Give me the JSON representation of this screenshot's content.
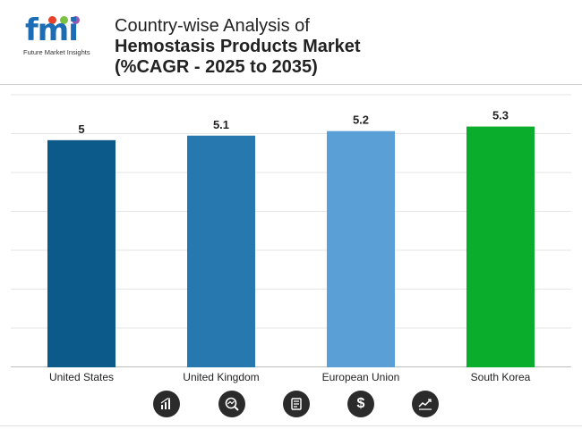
{
  "header": {
    "logo_text": "fmi",
    "logo_subtitle": "Future Market Insights",
    "title_line1": "Country-wise Analysis of",
    "title_line2": "Hemostasis Products Market",
    "title_line3": "(%CAGR - 2025 to 2035)"
  },
  "chart_data": {
    "type": "bar",
    "categories": [
      "United States",
      "United Kingdom",
      "European Union",
      "South Korea"
    ],
    "values": [
      5,
      5.1,
      5.2,
      5.3
    ],
    "data_labels": [
      "5",
      "5.1",
      "5.2",
      "5.3"
    ],
    "colors": [
      "#0b5a8a",
      "#2878b0",
      "#5aa0d6",
      "#0aad2c"
    ],
    "title": "",
    "xlabel": "",
    "ylabel": "",
    "ylim": [
      0,
      6
    ],
    "grid": true,
    "legend": "none"
  },
  "footer": {
    "icons": [
      "bar-chart-icon",
      "magnifier-chart-icon",
      "report-icon",
      "dollar-icon",
      "trend-chart-icon"
    ],
    "dollar_glyph": "$"
  }
}
